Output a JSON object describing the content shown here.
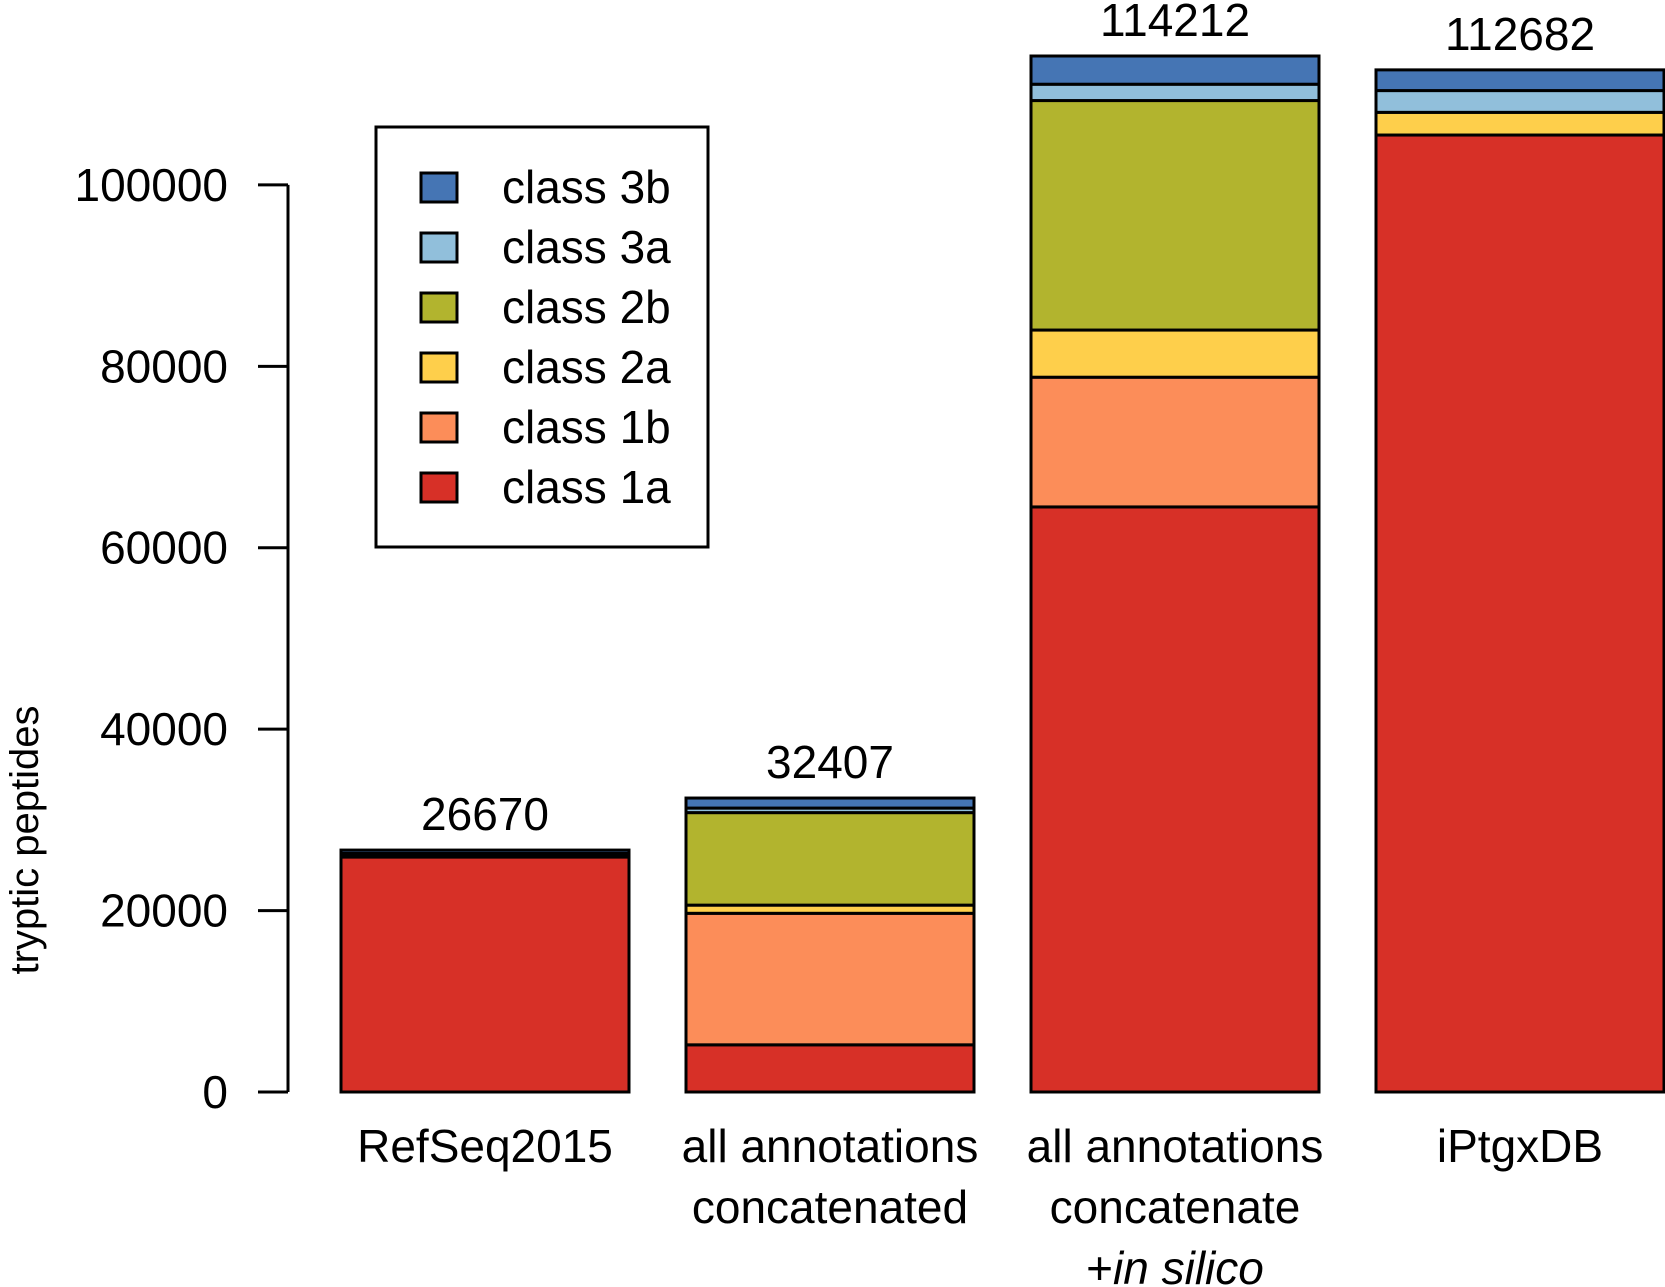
{
  "chart_data": {
    "type": "bar",
    "stacked": true,
    "ylabel": "tryptic peptides",
    "xlabel": "",
    "ylim": [
      0,
      114212
    ],
    "yticks": [
      0,
      20000,
      40000,
      60000,
      80000,
      100000
    ],
    "categories": [
      {
        "lines": [
          "RefSeq2015"
        ]
      },
      {
        "lines": [
          "all annotations",
          "concatenated"
        ]
      },
      {
        "lines": [
          "all annotations",
          "concatenate",
          "+in silico"
        ],
        "italic_line": 2,
        "italic_part": "in silico"
      },
      {
        "lines": [
          "iPtgxDB"
        ]
      }
    ],
    "totals": [
      "26670",
      "32407",
      "114212",
      "112682"
    ],
    "series": [
      {
        "name": "class 1a",
        "color": "#d73027",
        "values": [
          25900,
          5200,
          64500,
          105500
        ]
      },
      {
        "name": "class 1b",
        "color": "#fc8d59",
        "values": [
          0,
          14500,
          14300,
          0
        ]
      },
      {
        "name": "class 2a",
        "color": "#fecf4b",
        "values": [
          200,
          900,
          5200,
          2500
        ]
      },
      {
        "name": "class 2b",
        "color": "#b2b42e",
        "values": [
          0,
          10200,
          25300,
          0
        ]
      },
      {
        "name": "class 3a",
        "color": "#91bfdb",
        "values": [
          200,
          500,
          1800,
          2400
        ]
      },
      {
        "name": "class 3b",
        "color": "#4575b4",
        "values": [
          370,
          1107,
          3112,
          2282
        ]
      }
    ],
    "legend": {
      "placement": "top-left",
      "order": [
        "class 3b",
        "class 3a",
        "class 2b",
        "class 2a",
        "class 1b",
        "class 1a"
      ]
    },
    "grid": false
  }
}
